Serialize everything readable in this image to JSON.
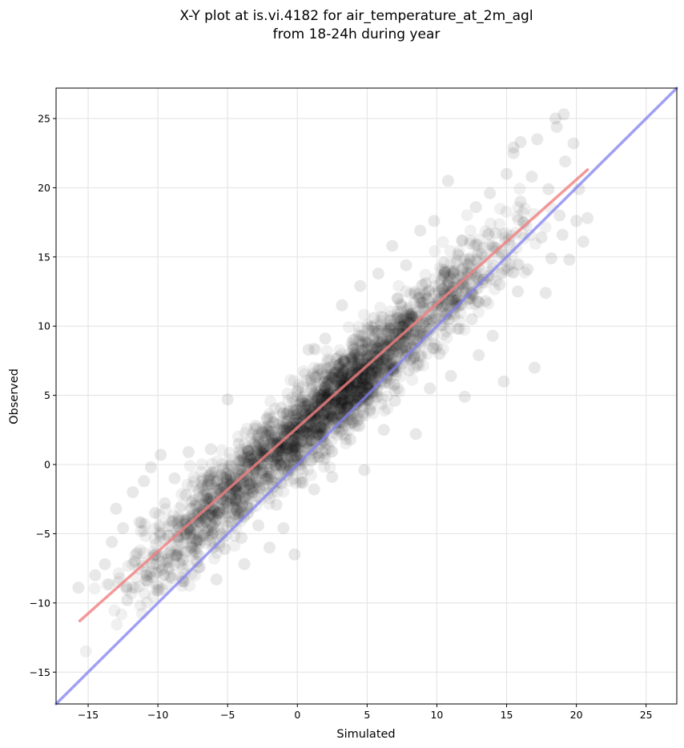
{
  "chart_data": {
    "type": "scatter",
    "title_line1": "X-Y plot at is.vi.4182 for air_temperature_at_2m_agl",
    "title_line2": "from 18-24h during year",
    "xlabel": "Simulated",
    "ylabel": "Observed",
    "xlim": [
      -17.3,
      27.2
    ],
    "ylim": [
      -17.3,
      27.2
    ],
    "xticks": [
      -15,
      -10,
      -5,
      0,
      5,
      10,
      15,
      20,
      25
    ],
    "yticks": [
      -15,
      -10,
      -5,
      0,
      5,
      10,
      15,
      20,
      25
    ],
    "grid": true,
    "point_color": "#000000",
    "point_opacity": 0.06,
    "fit_line": {
      "color": "#f08080",
      "x": [
        -15.6,
        20.8
      ],
      "y": [
        -11.3,
        21.3
      ]
    },
    "identity_line": {
      "color": "#8080f0",
      "x": [
        -17.3,
        27.2
      ],
      "y": [
        -17.3,
        27.2
      ]
    },
    "points": [
      [
        -15.7,
        -8.9
      ],
      [
        -14.5,
        -8.0
      ],
      [
        -13.8,
        -7.2
      ],
      [
        -13.3,
        -5.6
      ],
      [
        -13.0,
        -3.2
      ],
      [
        -12.5,
        -4.6
      ],
      [
        -12.2,
        -9.8
      ],
      [
        -11.8,
        -2.0
      ],
      [
        -11.5,
        -6.4
      ],
      [
        -11.2,
        -4.2
      ],
      [
        -11.0,
        -1.2
      ],
      [
        -10.8,
        -8.0
      ],
      [
        -10.5,
        -0.2
      ],
      [
        -10.2,
        -3.5
      ],
      [
        -10.0,
        -6.6
      ],
      [
        -9.8,
        0.7
      ],
      [
        -9.5,
        -2.8
      ],
      [
        -9.2,
        -5.1
      ],
      [
        -9.0,
        -8.2
      ],
      [
        -8.8,
        -1.0
      ],
      [
        -8.5,
        -4.5
      ],
      [
        -8.2,
        -6.9
      ],
      [
        -8.0,
        -2.2
      ],
      [
        -7.8,
        0.9
      ],
      [
        -7.5,
        -3.9
      ],
      [
        -7.2,
        -5.5
      ],
      [
        -7.0,
        -7.4
      ],
      [
        -6.8,
        -1.5
      ],
      [
        -6.5,
        -3.0
      ],
      [
        -6.2,
        1.1
      ],
      [
        -6.0,
        -4.9
      ],
      [
        -5.8,
        -8.3
      ],
      [
        -5.5,
        -2.4
      ],
      [
        -5.2,
        -6.1
      ],
      [
        -5.0,
        4.7
      ],
      [
        -4.8,
        -0.8
      ],
      [
        -4.5,
        -3.6
      ],
      [
        -4.2,
        1.5
      ],
      [
        -4.0,
        -5.3
      ],
      [
        -3.8,
        -7.2
      ],
      [
        -3.5,
        0.2
      ],
      [
        -3.2,
        -2.0
      ],
      [
        -3.0,
        2.8
      ],
      [
        -2.8,
        -4.4
      ],
      [
        -2.5,
        -0.6
      ],
      [
        -2.2,
        3.3
      ],
      [
        -2.0,
        -6.0
      ],
      [
        -1.8,
        1.9
      ],
      [
        -1.5,
        -2.9
      ],
      [
        -1.2,
        4.1
      ],
      [
        -1.0,
        -4.6
      ],
      [
        -0.8,
        0.5
      ],
      [
        -0.5,
        2.4
      ],
      [
        -0.2,
        -6.5
      ],
      [
        0.0,
        5.3
      ],
      [
        0.2,
        1.2
      ],
      [
        0.5,
        3.6
      ],
      [
        0.8,
        8.3
      ],
      [
        1.0,
        0.3
      ],
      [
        1.2,
        -1.8
      ],
      [
        1.5,
        4.8
      ],
      [
        1.8,
        2.0
      ],
      [
        2.0,
        9.1
      ],
      [
        2.2,
        6.0
      ],
      [
        2.5,
        -0.9
      ],
      [
        2.8,
        3.0
      ],
      [
        3.0,
        7.2
      ],
      [
        3.2,
        11.5
      ],
      [
        3.5,
        5.2
      ],
      [
        3.8,
        1.8
      ],
      [
        4.0,
        9.0
      ],
      [
        4.2,
        6.5
      ],
      [
        4.5,
        12.9
      ],
      [
        4.8,
        -0.4
      ],
      [
        5.0,
        7.9
      ],
      [
        5.2,
        3.9
      ],
      [
        5.5,
        10.6
      ],
      [
        5.8,
        13.8
      ],
      [
        6.0,
        6.0
      ],
      [
        6.2,
        2.5
      ],
      [
        6.5,
        9.5
      ],
      [
        6.8,
        15.8
      ],
      [
        7.0,
        4.6
      ],
      [
        7.2,
        12.0
      ],
      [
        7.5,
        8.4
      ],
      [
        7.8,
        14.4
      ],
      [
        8.0,
        6.8
      ],
      [
        8.2,
        10.9
      ],
      [
        8.5,
        2.2
      ],
      [
        8.8,
        16.9
      ],
      [
        9.0,
        9.6
      ],
      [
        9.2,
        13.1
      ],
      [
        9.5,
        5.5
      ],
      [
        9.8,
        17.6
      ],
      [
        10.0,
        11.5
      ],
      [
        10.2,
        8.0
      ],
      [
        10.5,
        14.6
      ],
      [
        10.8,
        20.5
      ],
      [
        11.0,
        6.4
      ],
      [
        11.2,
        12.8
      ],
      [
        11.5,
        9.8
      ],
      [
        11.8,
        16.2
      ],
      [
        12.0,
        4.9
      ],
      [
        12.2,
        13.9
      ],
      [
        12.5,
        10.5
      ],
      [
        12.8,
        18.6
      ],
      [
        13.0,
        7.9
      ],
      [
        13.2,
        15.2
      ],
      [
        13.5,
        11.8
      ],
      [
        13.8,
        19.6
      ],
      [
        14.0,
        9.3
      ],
      [
        14.2,
        16.7
      ],
      [
        14.5,
        13.0
      ],
      [
        14.8,
        6.0
      ],
      [
        15.0,
        21.0
      ],
      [
        15.2,
        15.9
      ],
      [
        15.5,
        22.9
      ],
      [
        15.8,
        12.5
      ],
      [
        16.0,
        19.0
      ],
      [
        16.2,
        17.5
      ],
      [
        16.5,
        14.1
      ],
      [
        16.8,
        20.8
      ],
      [
        17.0,
        7.0
      ],
      [
        17.2,
        23.5
      ],
      [
        17.5,
        16.4
      ],
      [
        17.8,
        12.4
      ],
      [
        18.0,
        19.9
      ],
      [
        18.2,
        14.9
      ],
      [
        18.5,
        25.0
      ],
      [
        18.8,
        18.0
      ],
      [
        19.0,
        16.6
      ],
      [
        19.2,
        21.9
      ],
      [
        19.5,
        14.8
      ],
      [
        19.8,
        23.2
      ],
      [
        20.0,
        17.6
      ],
      [
        20.2,
        19.9
      ],
      [
        20.5,
        16.1
      ],
      [
        20.8,
        17.8
      ],
      [
        19.1,
        25.3
      ],
      [
        18.6,
        24.4
      ],
      [
        16.0,
        23.3
      ],
      [
        15.5,
        22.5
      ]
    ]
  }
}
